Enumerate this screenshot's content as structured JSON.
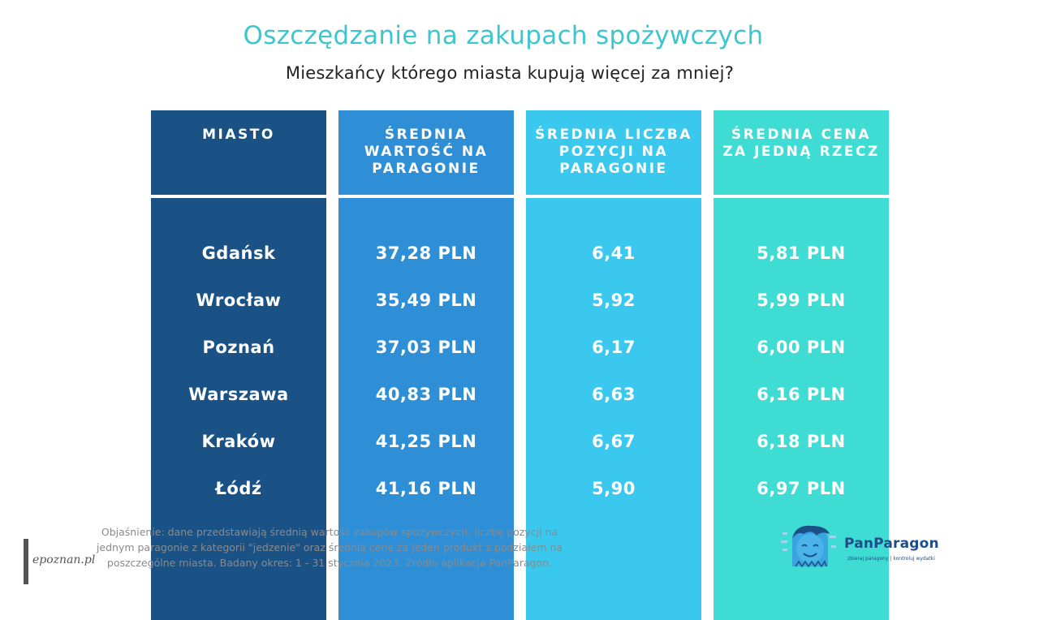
{
  "title": "Oszczędzanie na zakupach spożywczych",
  "subtitle": "Mieszkańcy którego miasta kupują więcej za mniej?",
  "chart_data": {
    "type": "table",
    "columns": [
      {
        "header": [
          "MIASTO"
        ],
        "color": "#1a5286"
      },
      {
        "header": [
          "ŚREDNIA",
          "WARTOŚĆ NA",
          "PARAGONIE"
        ],
        "color": "#2f8fd6"
      },
      {
        "header": [
          "ŚREDNIA LICZBA",
          "POZYCJI NA",
          "PARAGONIE"
        ],
        "color": "#3bc8ee"
      },
      {
        "header": [
          "ŚREDNIA CENA",
          "ZA JEDNĄ RZECZ"
        ],
        "color": "#3fdcd3"
      }
    ],
    "rows": [
      [
        "Gdańsk",
        "37,28 PLN",
        "6,41",
        "5,81 PLN"
      ],
      [
        "Wrocław",
        "35,49 PLN",
        "5,92",
        "5,99 PLN"
      ],
      [
        "Poznań",
        "37,03 PLN",
        "6,17",
        "6,00 PLN"
      ],
      [
        "Warszawa",
        "40,83 PLN",
        "6,63",
        "6,16 PLN"
      ],
      [
        "Kraków",
        "41,25 PLN",
        "6,67",
        "6,18 PLN"
      ],
      [
        "Łódź",
        "41,16 PLN",
        "5,90",
        "6,97 PLN"
      ]
    ]
  },
  "footnote": [
    "Objaśnienie: dane przedstawiają średnią wartość zakupów spożywczych, liczbę pozycji na",
    "jednym paragonie z kategorii \"jedzenie\" oraz średnią cenę za jeden produkt z podziałem na",
    "poszczególne miasta. Badany okres: 1 - 31 stycznia 2023. Źródło aplikacja PanParagon."
  ],
  "watermark": "epoznan.pl",
  "logo": {
    "name": "PanParagon",
    "tagline": "zbieraj paragony | kontroluj wydatki",
    "icon": "panparagon-mascot-icon"
  }
}
